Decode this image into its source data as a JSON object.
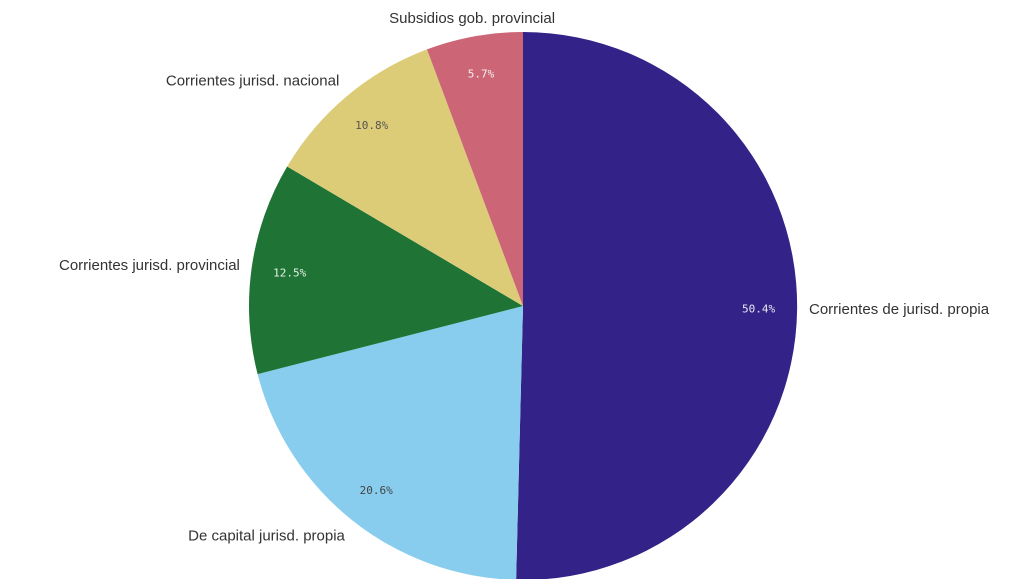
{
  "chart_data": {
    "type": "pie",
    "title": "",
    "slices": [
      {
        "label": "Corrientes de jurisd. propia",
        "value": 50.4,
        "display": "50.4%",
        "color": "#332288",
        "text_color": "#e8e8f0"
      },
      {
        "label": "De capital jurisd. propia",
        "value": 20.6,
        "display": "20.6%",
        "color": "#88ccee",
        "text_color": "#444444"
      },
      {
        "label": "Corrientes jurisd. provincial",
        "value": 12.5,
        "display": "12.5%",
        "color": "#1e7335",
        "text_color": "#e8f0e8"
      },
      {
        "label": "Corrientes jurisd. nacional",
        "value": 10.8,
        "display": "10.8%",
        "color": "#ddcc77",
        "text_color": "#555555"
      },
      {
        "label": "Subsidios gob. provincial",
        "value": 5.7,
        "display": "5.7%",
        "color": "#cc6677",
        "text_color": "#f5f0f0"
      }
    ],
    "start_angle": "top (12 o'clock)",
    "direction": "clockwise",
    "legend": "none (labels outside slices)"
  }
}
